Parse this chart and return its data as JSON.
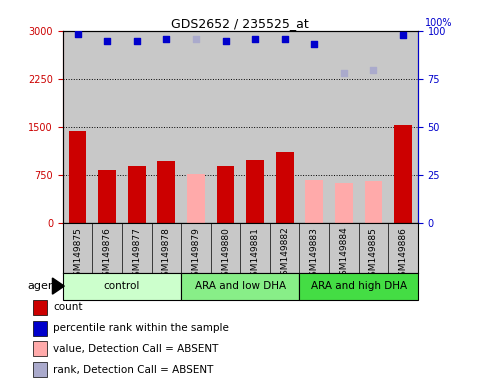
{
  "title": "GDS2652 / 235525_at",
  "samples": [
    "GSM149875",
    "GSM149876",
    "GSM149877",
    "GSM149878",
    "GSM149879",
    "GSM149880",
    "GSM149881",
    "GSM149882",
    "GSM149883",
    "GSM149884",
    "GSM149885",
    "GSM149886"
  ],
  "counts": [
    1430,
    820,
    880,
    960,
    null,
    880,
    980,
    1100,
    null,
    null,
    null,
    1520
  ],
  "counts_absent": [
    null,
    null,
    null,
    null,
    760,
    null,
    null,
    null,
    670,
    620,
    650,
    null
  ],
  "percentile_ranks": [
    2950,
    2840,
    2840,
    2870,
    null,
    2840,
    2870,
    2870,
    2790,
    null,
    null,
    2930
  ],
  "percentile_ranks_absent": [
    null,
    null,
    null,
    null,
    2870,
    null,
    null,
    null,
    null,
    2340,
    2380,
    null
  ],
  "ylim_left": [
    0,
    3000
  ],
  "ylim_right": [
    0,
    100
  ],
  "yticks_left": [
    0,
    750,
    1500,
    2250,
    3000
  ],
  "yticks_right": [
    0,
    25,
    50,
    75,
    100
  ],
  "groups": [
    {
      "label": "control",
      "start": 0,
      "end": 4,
      "color": "#ccffcc"
    },
    {
      "label": "ARA and low DHA",
      "start": 4,
      "end": 8,
      "color": "#88ee88"
    },
    {
      "label": "ARA and high DHA",
      "start": 8,
      "end": 12,
      "color": "#44dd44"
    }
  ],
  "bar_color_present": "#cc0000",
  "bar_color_absent": "#ffaaaa",
  "scatter_color_present": "#0000cc",
  "scatter_color_absent": "#aaaacc",
  "bg_color": "#c8c8c8",
  "left_axis_color": "#cc0000",
  "right_axis_color": "#0000cc",
  "legend": [
    {
      "color": "#cc0000",
      "label": "count"
    },
    {
      "color": "#0000cc",
      "label": "percentile rank within the sample"
    },
    {
      "color": "#ffaaaa",
      "label": "value, Detection Call = ABSENT"
    },
    {
      "color": "#aaaacc",
      "label": "rank, Detection Call = ABSENT"
    }
  ]
}
